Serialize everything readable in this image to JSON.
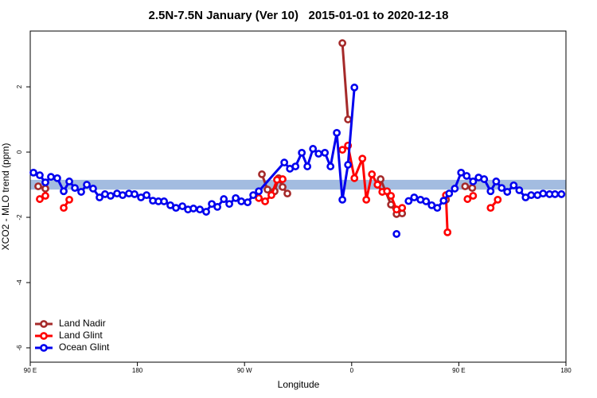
{
  "chart_data": {
    "type": "line",
    "title": "2.5N-7.5N January (Ver 10)   2015-01-01 to 2020-12-18",
    "x_label": "Longitude",
    "y_label": "XCO2 - MLO trend (ppm)",
    "xlim": [
      90,
      540
    ],
    "ylim": [
      -6.44,
      3.71
    ],
    "xticks": [
      {
        "value": 90,
        "label": "90 E"
      },
      {
        "value": 180,
        "label": "180"
      },
      {
        "value": 270,
        "label": "90 W"
      },
      {
        "value": 360,
        "label": "0"
      },
      {
        "value": 450,
        "label": "90 E"
      },
      {
        "value": 540,
        "label": "180"
      }
    ],
    "yticks": [
      2,
      0,
      -2,
      -4,
      -6
    ],
    "reference_band": {
      "range": [
        -1.15,
        -0.85
      ],
      "color": "#a3bce0"
    },
    "legend": "bottom-left",
    "series": [
      {
        "name": "Land Nadir",
        "color": "#a52a2a",
        "x": [
          96.7,
          102.7,
          null,
          284.6,
          289.3,
          295.3,
          298.6,
          302.0,
          306.0,
          null,
          352.2,
          356.9,
          null,
          384.3,
          393.0,
          397.7,
          402.4,
          null,
          439.2,
          null,
          455.3,
          461.3
        ],
        "values": [
          -1.05,
          -1.12,
          null,
          -0.68,
          -1.15,
          -1.2,
          -0.8,
          -1.07,
          -1.27,
          null,
          3.34,
          1.0,
          null,
          -0.83,
          -1.61,
          -1.9,
          -1.88,
          null,
          -1.46,
          null,
          -1.05,
          -1.1
        ]
      },
      {
        "name": "Land Glint",
        "color": "#ff0000",
        "x": [
          98.0,
          102.7,
          null,
          118.1,
          122.8,
          null,
          282.0,
          287.3,
          292.6,
          297.3,
          302.0,
          null,
          352.2,
          356.9,
          362.3,
          369.0,
          372.3,
          377.0,
          381.7,
          385.7,
          389.7,
          393.0,
          397.7,
          402.4,
          null,
          439.2,
          440.5,
          null,
          457.3,
          462.0,
          null,
          476.7,
          482.7
        ],
        "values": [
          -1.44,
          -1.34,
          null,
          -1.71,
          -1.46,
          null,
          -1.41,
          -1.51,
          -1.32,
          -0.85,
          -0.83,
          null,
          0.07,
          0.2,
          -0.8,
          -0.2,
          -1.46,
          -0.68,
          -1.0,
          -1.22,
          -1.2,
          -1.34,
          -1.76,
          -1.71,
          null,
          -1.32,
          -2.46,
          null,
          -1.44,
          -1.34,
          null,
          -1.71,
          -1.46
        ]
      },
      {
        "name": "Ocean Glint",
        "color": "#0000ee",
        "x": [
          92.7,
          98.0,
          102.7,
          107.4,
          112.7,
          118.1,
          122.8,
          127.5,
          132.8,
          137.5,
          142.8,
          148.2,
          152.8,
          157.5,
          162.9,
          167.6,
          172.9,
          177.6,
          183.0,
          187.7,
          193.0,
          197.7,
          202.4,
          207.7,
          212.4,
          217.8,
          222.5,
          227.1,
          232.5,
          237.8,
          242.5,
          247.2,
          252.6,
          257.2,
          262.6,
          267.3,
          272.6,
          277.3,
          282.0,
          303.4,
          308.1,
          312.8,
          318.1,
          322.8,
          327.5,
          332.2,
          337.5,
          342.2,
          347.5,
          352.2,
          356.9,
          362.3,
          null,
          397.7,
          null,
          407.8,
          412.5,
          417.8,
          422.5,
          427.2,
          431.9,
          437.2,
          441.9,
          446.6,
          451.9,
          456.6,
          462.0,
          466.6,
          471.3,
          476.7,
          481.4,
          486.0,
          490.7,
          496.1,
          500.8,
          506.1,
          510.8,
          516.1,
          520.8,
          526.2,
          530.8,
          536.2
        ],
        "values": [
          -0.63,
          -0.71,
          -0.93,
          -0.76,
          -0.8,
          -1.2,
          -0.9,
          -1.1,
          -1.22,
          -1.0,
          -1.12,
          -1.39,
          -1.29,
          -1.34,
          -1.27,
          -1.32,
          -1.27,
          -1.29,
          -1.39,
          -1.32,
          -1.49,
          -1.51,
          -1.51,
          -1.63,
          -1.71,
          -1.66,
          -1.76,
          -1.73,
          -1.76,
          -1.83,
          -1.59,
          -1.68,
          -1.44,
          -1.59,
          -1.41,
          -1.51,
          -1.54,
          -1.32,
          -1.2,
          -0.32,
          -0.51,
          -0.44,
          -0.02,
          -0.44,
          0.1,
          -0.05,
          -0.02,
          -0.44,
          0.59,
          -1.46,
          -0.39,
          1.98,
          null,
          -2.51,
          null,
          -1.5,
          -1.39,
          -1.46,
          -1.51,
          -1.63,
          -1.71,
          -1.49,
          -1.27,
          -1.12,
          -0.63,
          -0.73,
          -0.9,
          -0.78,
          -0.83,
          -1.2,
          -0.9,
          -1.1,
          -1.22,
          -1.02,
          -1.17,
          -1.39,
          -1.32,
          -1.32,
          -1.27,
          -1.29,
          -1.29,
          -1.29
        ]
      }
    ]
  }
}
